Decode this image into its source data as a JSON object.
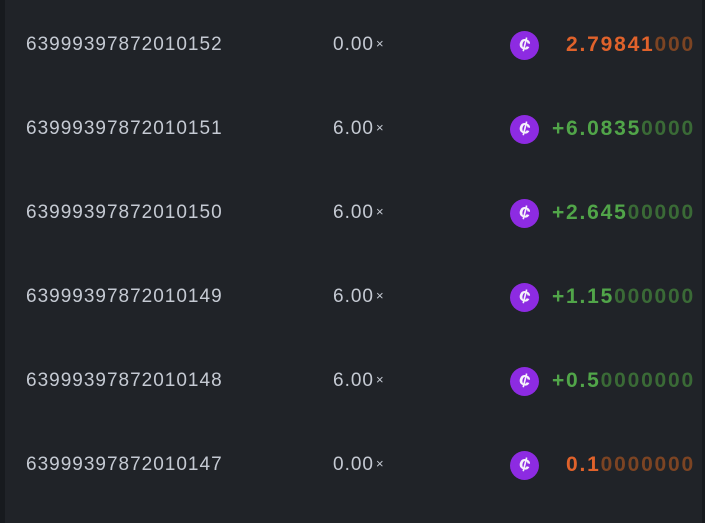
{
  "table": {
    "multiplier_suffix": "×",
    "rows": [
      {
        "bet_id": "63999397872010152",
        "multiplier": "0.00",
        "payout_significant": "2.79841",
        "payout_trailing_zeros": "000",
        "outcome": "loss"
      },
      {
        "bet_id": "63999397872010151",
        "multiplier": "6.00",
        "payout_significant": "+6.0835",
        "payout_trailing_zeros": "0000",
        "outcome": "win"
      },
      {
        "bet_id": "63999397872010150",
        "multiplier": "6.00",
        "payout_significant": "+2.645",
        "payout_trailing_zeros": "00000",
        "outcome": "win"
      },
      {
        "bet_id": "63999397872010149",
        "multiplier": "6.00",
        "payout_significant": "+1.15",
        "payout_trailing_zeros": "000000",
        "outcome": "win"
      },
      {
        "bet_id": "63999397872010148",
        "multiplier": "6.00",
        "payout_significant": "+0.5",
        "payout_trailing_zeros": "0000000",
        "outcome": "win"
      },
      {
        "bet_id": "63999397872010147",
        "multiplier": "0.00",
        "payout_significant": "0.1",
        "payout_trailing_zeros": "0000000",
        "outcome": "loss"
      }
    ]
  },
  "icons": {
    "currency_coin": {
      "glyph": "¢"
    }
  },
  "colors": {
    "bg": "#202328",
    "edge": "#171a1e",
    "text": "#c5cad3",
    "win": "#51a549",
    "win_dim": "#3a6a36",
    "loss": "#e0622b",
    "loss_dim": "#7c4423",
    "coin": "#8d2be2",
    "coin_glyph": "#f5f2fa"
  }
}
